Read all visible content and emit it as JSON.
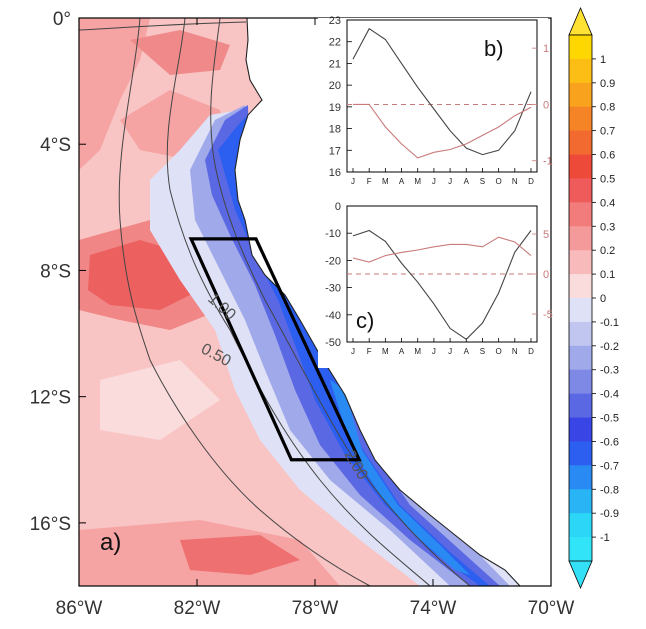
{
  "chart_data": [
    {
      "panel": "a)",
      "type": "heatmap",
      "x_ticks": [
        "86°W",
        "82°W",
        "78°W",
        "74°W",
        "70°W"
      ],
      "x_tick_values": [
        -86,
        -82,
        -78,
        -74,
        -70
      ],
      "y_ticks": [
        "0°",
        "4°S",
        "8°S",
        "12°S",
        "16°S"
      ],
      "y_tick_values": [
        0,
        -4,
        -8,
        -12,
        -16
      ],
      "xlim": [
        -86,
        -70
      ],
      "ylim": [
        -18,
        0
      ],
      "contour_labels": [
        "1.00",
        "0.50",
        "2.00"
      ],
      "box": [
        [
          -82.2,
          -7.0
        ],
        [
          -80.0,
          -7.0
        ],
        [
          -76.5,
          -14.0
        ],
        [
          -78.8,
          -14.0
        ]
      ],
      "colorbar": {
        "labels": [
          "1",
          "0.9",
          "0.8",
          "0.7",
          "0.6",
          "0.5",
          "0.4",
          "0.3",
          "0.2",
          "0.1",
          "0",
          "-0.1",
          "-0.2",
          "-0.3",
          "-0.4",
          "-0.5",
          "-0.6",
          "-0.7",
          "-0.8",
          "-0.9",
          "-1"
        ],
        "colors": [
          "#ffd700",
          "#fcbe14",
          "#f9a21d",
          "#f58426",
          "#f26a30",
          "#ee4a3a",
          "#ef5b5b",
          "#f27b7b",
          "#f59a9a",
          "#f8baba",
          "#fbdcdc",
          "#dfe2f7",
          "#c0c6f0",
          "#a0a9ea",
          "#7e89e6",
          "#5b68e4",
          "#3946e5",
          "#2c5ff0",
          "#2a8af3",
          "#29b4f5",
          "#2cd6f7",
          "#32e4f8"
        ],
        "top_arrow_color": "#ffe233",
        "bottom_arrow_color": "#33e0f5"
      }
    },
    {
      "panel": "b)",
      "type": "line",
      "categories": [
        "J",
        "F",
        "M",
        "A",
        "M",
        "J",
        "J",
        "A",
        "S",
        "O",
        "N",
        "D"
      ],
      "ylim": [
        16,
        23
      ],
      "y_ticks": [
        "16",
        "17",
        "18",
        "19",
        "20",
        "21",
        "22",
        "23"
      ],
      "y2lim": [
        -1.2,
        1.5
      ],
      "y2_ticks": [
        "-1",
        "0",
        "1"
      ],
      "y2_ref": 0,
      "series": [
        {
          "axis": "left",
          "color": "#444444",
          "values": [
            21.2,
            22.6,
            22.1,
            21.0,
            19.9,
            18.9,
            17.9,
            17.1,
            16.8,
            17.0,
            17.9,
            19.7
          ]
        },
        {
          "axis": "right",
          "color": "#c97a7a",
          "values": [
            0.0,
            0.0,
            -0.4,
            -0.7,
            -0.95,
            -0.85,
            -0.8,
            -0.7,
            -0.55,
            -0.4,
            -0.2,
            -0.05
          ]
        }
      ]
    },
    {
      "panel": "c)",
      "type": "line",
      "categories": [
        "J",
        "F",
        "M",
        "A",
        "M",
        "J",
        "J",
        "A",
        "S",
        "O",
        "N",
        "D"
      ],
      "ylim": [
        -50,
        0
      ],
      "y_ticks": [
        "0",
        "-10",
        "-20",
        "-30",
        "-40",
        "-50"
      ],
      "y2lim": [
        -8.5,
        8.5
      ],
      "y2_ticks": [
        "5",
        "0",
        "-5"
      ],
      "y2_ref": 0,
      "series": [
        {
          "axis": "left",
          "color": "#444444",
          "values": [
            -11,
            -9,
            -13,
            -21,
            -28,
            -36,
            -45,
            -49,
            -43,
            -32,
            -17,
            -9
          ]
        },
        {
          "axis": "right",
          "color": "#c97a7a",
          "values": [
            2.0,
            1.5,
            2.3,
            2.7,
            3.0,
            3.4,
            3.7,
            3.7,
            3.4,
            4.6,
            4.0,
            2.3
          ]
        }
      ]
    }
  ]
}
